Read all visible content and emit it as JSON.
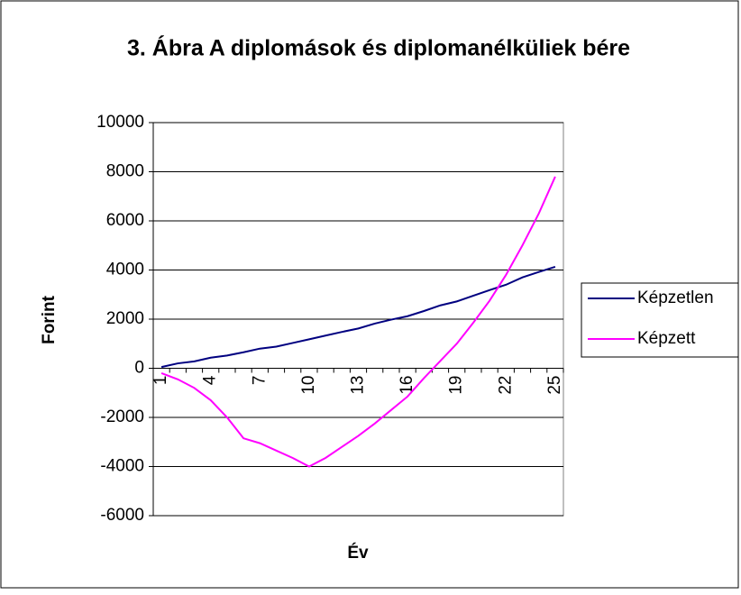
{
  "chart_data": {
    "type": "line",
    "title": "3. Ábra A diplomások és diplomanélküliek bére",
    "x_label": "Év",
    "y_label": "Forint",
    "categories": [
      1,
      null,
      null,
      4,
      null,
      null,
      7,
      null,
      null,
      10,
      null,
      null,
      13,
      null,
      null,
      16,
      null,
      null,
      19,
      null,
      null,
      22,
      null,
      null,
      25
    ],
    "series": [
      {
        "name": "Képzetlen",
        "color": "#000080",
        "values": [
          50,
          200,
          280,
          430,
          520,
          650,
          800,
          880,
          1030,
          1180,
          1330,
          1480,
          1620,
          1820,
          1980,
          2120,
          2330,
          2560,
          2720,
          2950,
          3180,
          3400,
          3700,
          3920,
          4130
        ]
      },
      {
        "name": "Képzett",
        "color": "#ff00ff",
        "values": [
          -200,
          -450,
          -800,
          -1300,
          -2000,
          -2850,
          -3050,
          -3350,
          -3650,
          -4000,
          -3650,
          -3200,
          -2750,
          -2250,
          -1700,
          -1150,
          -400,
          300,
          1000,
          1850,
          2750,
          3800,
          5000,
          6300,
          7800
        ]
      }
    ],
    "ylim": [
      -6000,
      10000
    ],
    "yticks": [
      -6000,
      -4000,
      -2000,
      0,
      2000,
      4000,
      6000,
      8000,
      10000
    ],
    "grid": true,
    "legend": "right"
  }
}
